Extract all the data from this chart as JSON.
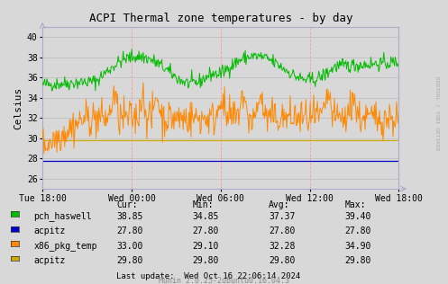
{
  "title": "ACPI Thermal zone temperatures - by day",
  "ylabel": "Celsius",
  "bg_color": "#d8d8d8",
  "plot_bg_color": "#d8d8d8",
  "ylim": [
    25.0,
    41.0
  ],
  "yticks": [
    26,
    28,
    30,
    32,
    34,
    36,
    38,
    40
  ],
  "xtick_labels": [
    "Tue 18:00",
    "Wed 00:00",
    "Wed 06:00",
    "Wed 12:00",
    "Wed 18:00"
  ],
  "grid_color_v": "#ff9999",
  "grid_color_h": "#cccccc",
  "series": {
    "pch_haswell": {
      "color": "#00bb00"
    },
    "acpitz_blue": {
      "color": "#0000cc",
      "const": 27.8
    },
    "x86_pkg_temp": {
      "color": "#ff8800"
    },
    "acpitz_yellow": {
      "color": "#ccaa00",
      "const": 29.8
    }
  },
  "legend": [
    {
      "label": "pch_haswell",
      "color": "#00bb00",
      "cur": "38.85",
      "min": "34.85",
      "avg": "37.37",
      "max": "39.40"
    },
    {
      "label": "acpitz",
      "color": "#0000cc",
      "cur": "27.80",
      "min": "27.80",
      "avg": "27.80",
      "max": "27.80"
    },
    {
      "label": "x86_pkg_temp",
      "color": "#ff8800",
      "cur": "33.00",
      "min": "29.10",
      "avg": "32.28",
      "max": "34.90"
    },
    {
      "label": "acpitz",
      "color": "#ccaa00",
      "cur": "29.80",
      "min": "29.80",
      "avg": "29.80",
      "max": "29.80"
    }
  ],
  "footer": "Last update:  Wed Oct 16 22:06:14 2024",
  "munin_ver": "Munin 2.0.25-2ubuntu0.16.04.3",
  "rrdtool_label": "RRDTOOL / TOBI OETIKER",
  "num_points": 500
}
